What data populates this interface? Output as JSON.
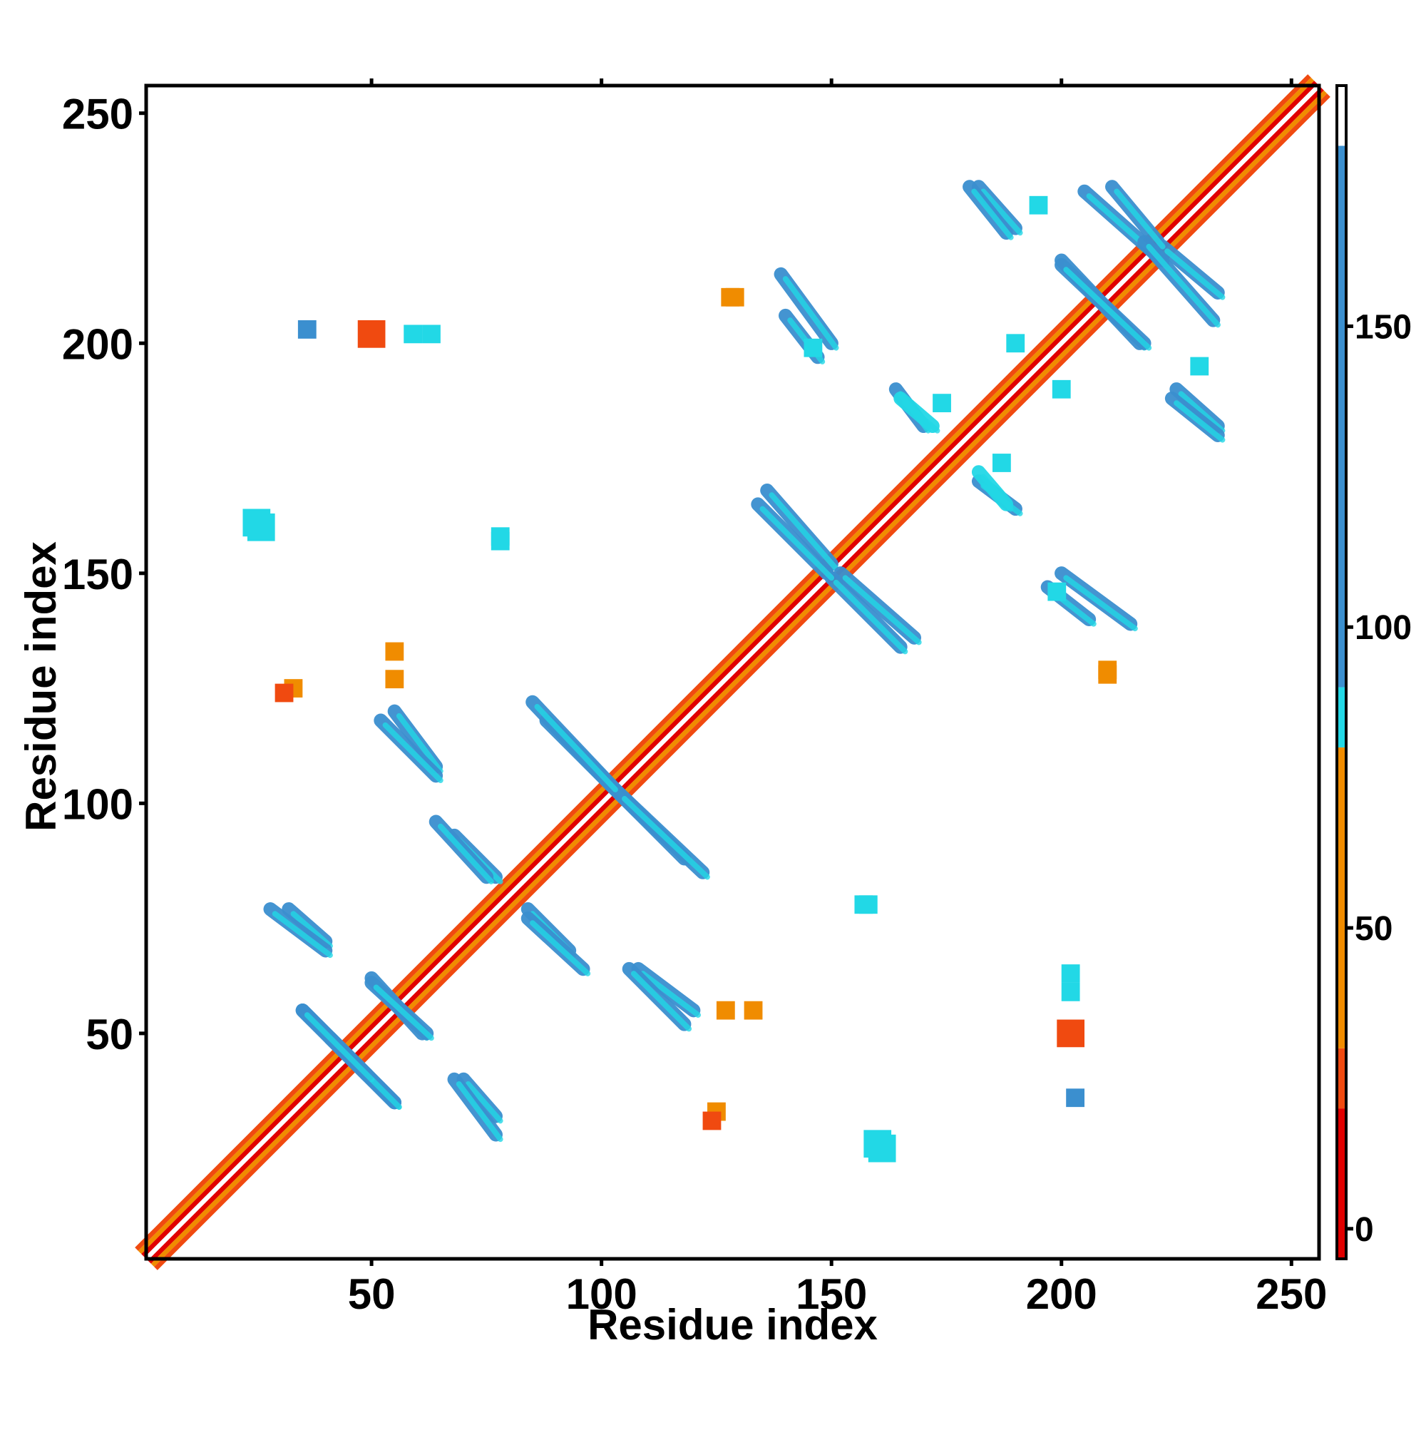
{
  "chart_data": {
    "type": "heatmap",
    "subtype": "contact-map",
    "title": "",
    "xlabel": "Residue index",
    "ylabel": "Residue index",
    "xlim": [
      1,
      256
    ],
    "ylim": [
      1,
      256
    ],
    "x_ticks": [
      50,
      100,
      150,
      200,
      250
    ],
    "y_ticks": [
      50,
      100,
      150,
      200,
      250
    ],
    "grid": false,
    "colorbar": {
      "position": "right",
      "ticks": [
        0,
        50,
        100,
        150
      ],
      "range": [
        -5,
        190
      ],
      "bands": [
        {
          "from": -5,
          "to": 20,
          "color": "#e00000"
        },
        {
          "from": 20,
          "to": 30,
          "color": "#f04a10"
        },
        {
          "from": 30,
          "to": 80,
          "color": "#f08c00"
        },
        {
          "from": 80,
          "to": 90,
          "color": "#22d8e6"
        },
        {
          "from": 90,
          "to": 180,
          "color": "#3b8fcf"
        },
        {
          "from": 180,
          "to": 190,
          "color": "#ffffff"
        }
      ]
    },
    "diagonal": {
      "from": 1,
      "to": 256,
      "stripes": [
        "#e00000",
        "#f08c00",
        "#f04a10",
        "#22d8e6"
      ]
    },
    "contact_segments": [
      {
        "x": [
          35,
          49
        ],
        "y": [
          55,
          41
        ],
        "color": "#3b8fcf",
        "w": 3
      },
      {
        "x": [
          41,
          55
        ],
        "y": [
          49,
          35
        ],
        "color": "#3b8fcf",
        "w": 3
      },
      {
        "x": [
          50,
          61
        ],
        "y": [
          62,
          50
        ],
        "color": "#3b8fcf",
        "w": 3
      },
      {
        "x": [
          70,
          77
        ],
        "y": [
          40,
          32
        ],
        "color": "#3b8fcf",
        "w": 3
      },
      {
        "x": [
          28,
          40
        ],
        "y": [
          77,
          68
        ],
        "color": "#3b8fcf",
        "w": 3
      },
      {
        "x": [
          68,
          77
        ],
        "y": [
          93,
          84
        ],
        "color": "#3b8fcf",
        "w": 3
      },
      {
        "x": [
          84,
          96
        ],
        "y": [
          75,
          64
        ],
        "color": "#3b8fcf",
        "w": 3
      },
      {
        "x": [
          55,
          64
        ],
        "y": [
          120,
          108
        ],
        "color": "#3b8fcf",
        "w": 3
      },
      {
        "x": [
          88,
          104
        ],
        "y": [
          118,
          102
        ],
        "color": "#3b8fcf",
        "w": 3
      },
      {
        "x": [
          104,
          122
        ],
        "y": [
          102,
          85
        ],
        "color": "#3b8fcf",
        "w": 3
      },
      {
        "x": [
          106,
          118
        ],
        "y": [
          64,
          52
        ],
        "color": "#3b8fcf",
        "w": 3
      },
      {
        "x": [
          136,
          150
        ],
        "y": [
          168,
          152
        ],
        "color": "#3b8fcf",
        "w": 3
      },
      {
        "x": [
          150,
          165
        ],
        "y": [
          149,
          134
        ],
        "color": "#3b8fcf",
        "w": 3
      },
      {
        "x": [
          139,
          150
        ],
        "y": [
          215,
          200
        ],
        "color": "#3b8fcf",
        "w": 3
      },
      {
        "x": [
          182,
          190
        ],
        "y": [
          234,
          225
        ],
        "color": "#3b8fcf",
        "w": 3
      },
      {
        "x": [
          205,
          222
        ],
        "y": [
          233,
          218
        ],
        "color": "#3b8fcf",
        "w": 3
      },
      {
        "x": [
          200,
          217
        ],
        "y": [
          218,
          200
        ],
        "color": "#3b8fcf",
        "w": 3
      },
      {
        "x": [
          222,
          234
        ],
        "y": [
          221,
          211
        ],
        "color": "#3b8fcf",
        "w": 3
      },
      {
        "x": [
          224,
          234
        ],
        "y": [
          188,
          180
        ],
        "color": "#3b8fcf",
        "w": 3
      },
      {
        "x": [
          197,
          206
        ],
        "y": [
          147,
          140
        ],
        "color": "#3b8fcf",
        "w": 3
      },
      {
        "x": [
          182,
          190
        ],
        "y": [
          170,
          164
        ],
        "color": "#3b8fcf",
        "w": 3
      },
      {
        "x": [
          165,
          172
        ],
        "y": [
          188,
          182
        ],
        "color": "#22d8e6",
        "w": 3
      }
    ],
    "contact_blobs": [
      {
        "x": 26,
        "y": 160,
        "color": "#22d8e6",
        "r": 3
      },
      {
        "x": 78,
        "y": 157,
        "color": "#22d8e6",
        "r": 2
      },
      {
        "x": 36,
        "y": 203,
        "color": "#3b8fcf",
        "r": 2
      },
      {
        "x": 50,
        "y": 202,
        "color": "#f04a10",
        "r": 3
      },
      {
        "x": 59,
        "y": 202,
        "color": "#22d8e6",
        "r": 2
      },
      {
        "x": 33,
        "y": 125,
        "color": "#f08c00",
        "r": 2
      },
      {
        "x": 55,
        "y": 127,
        "color": "#f08c00",
        "r": 2
      },
      {
        "x": 128,
        "y": 210,
        "color": "#f08c00",
        "r": 2
      },
      {
        "x": 133,
        "y": 55,
        "color": "#f08c00",
        "r": 2
      },
      {
        "x": 124,
        "y": 31,
        "color": "#f04a10",
        "r": 2
      },
      {
        "x": 161,
        "y": 25,
        "color": "#22d8e6",
        "r": 3
      },
      {
        "x": 203,
        "y": 50,
        "color": "#f04a10",
        "r": 2
      },
      {
        "x": 202,
        "y": 63,
        "color": "#22d8e6",
        "r": 2
      },
      {
        "x": 158,
        "y": 78,
        "color": "#22d8e6",
        "r": 2
      },
      {
        "x": 174,
        "y": 187,
        "color": "#22d8e6",
        "r": 2
      },
      {
        "x": 190,
        "y": 200,
        "color": "#22d8e6",
        "r": 2
      },
      {
        "x": 210,
        "y": 129,
        "color": "#f08c00",
        "r": 2
      },
      {
        "x": 230,
        "y": 195,
        "color": "#22d8e6",
        "r": 2
      },
      {
        "x": 146,
        "y": 199,
        "color": "#22d8e6",
        "r": 2
      }
    ]
  }
}
